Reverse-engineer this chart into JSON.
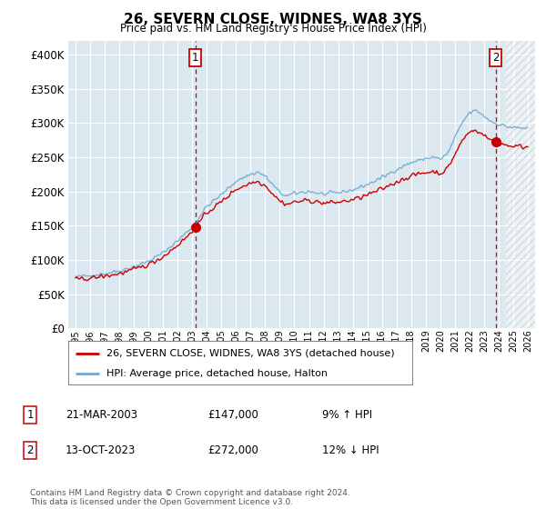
{
  "title": "26, SEVERN CLOSE, WIDNES, WA8 3YS",
  "subtitle": "Price paid vs. HM Land Registry's House Price Index (HPI)",
  "legend_line1": "26, SEVERN CLOSE, WIDNES, WA8 3YS (detached house)",
  "legend_line2": "HPI: Average price, detached house, Halton",
  "sale1_date": "21-MAR-2003",
  "sale1_price": "£147,000",
  "sale1_hpi": "9% ↑ HPI",
  "sale2_date": "13-OCT-2023",
  "sale2_price": "£272,000",
  "sale2_hpi": "12% ↓ HPI",
  "footer": "Contains HM Land Registry data © Crown copyright and database right 2024.\nThis data is licensed under the Open Government Licence v3.0.",
  "hpi_color": "#6fa8d0",
  "price_color": "#cc0000",
  "bg_color": "#dce8f0",
  "grid_color": "#ffffff",
  "ylim": [
    0,
    420000
  ],
  "yticks": [
    0,
    50000,
    100000,
    150000,
    200000,
    250000,
    300000,
    350000,
    400000
  ],
  "sale1_x": 2003.22,
  "sale1_y": 147000,
  "sale2_x": 2023.79,
  "sale2_y": 272000,
  "future_shade_start": 2024.5,
  "xmin": 1994.5,
  "xmax": 2026.5
}
